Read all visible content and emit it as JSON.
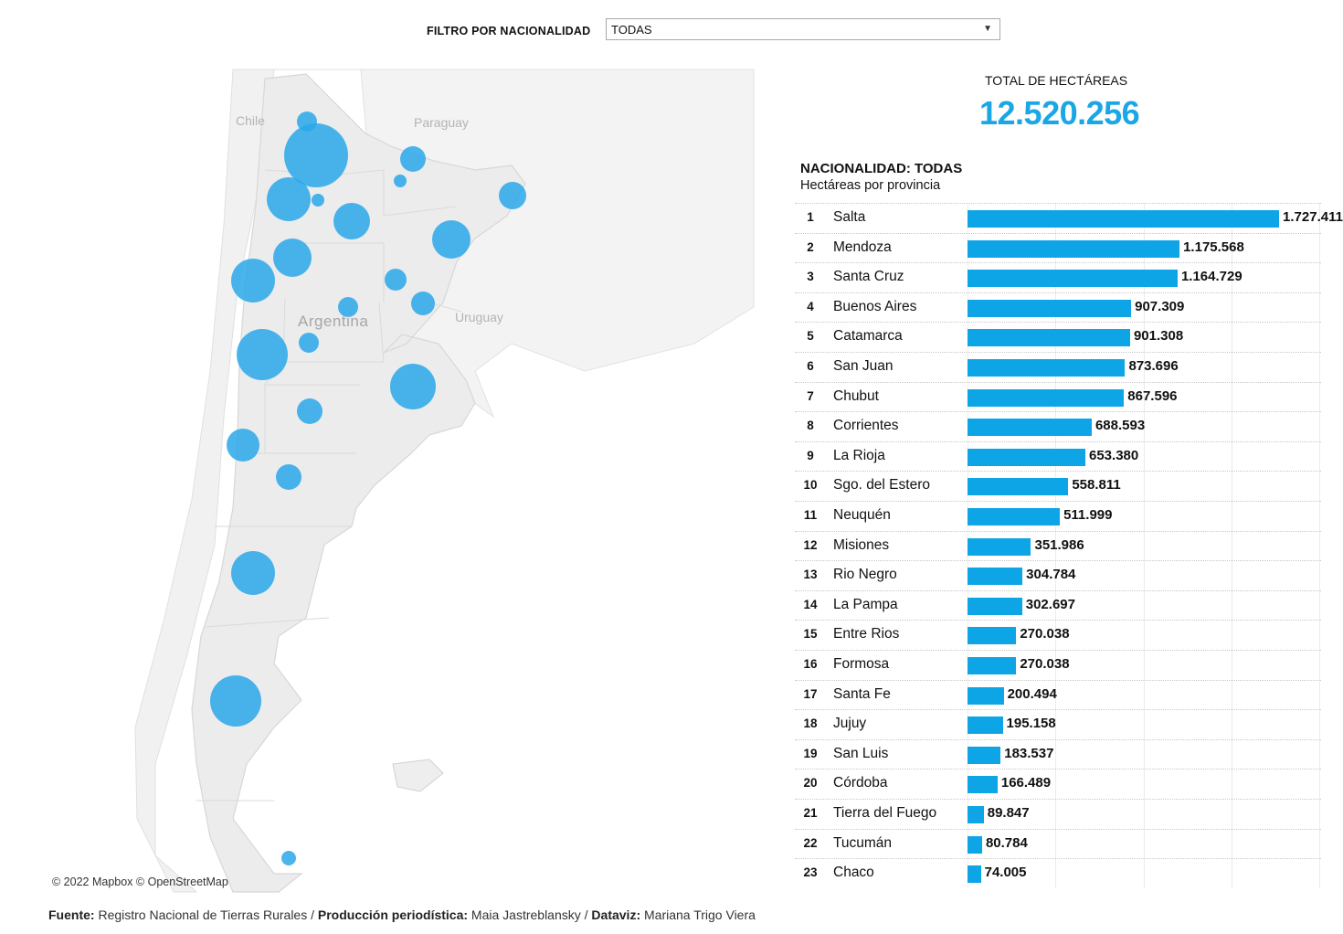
{
  "filter": {
    "label": "FILTRO POR NACIONALIDAD",
    "value": "TODAS"
  },
  "map": {
    "labels": {
      "chile": "Chile",
      "paraguay": "Paraguay",
      "argentina": "Argentina",
      "uruguay": "Uruguay"
    },
    "attribution": "© 2022 Mapbox  © OpenStreetMap",
    "bubble_color": "#2aa8ea"
  },
  "total": {
    "label": "TOTAL DE HECTÁREAS",
    "value": "12.520.256"
  },
  "chart_title": "NACIONALIDAD:  TODAS",
  "chart_subtitle": "Hectáreas por provincia",
  "chart_data": {
    "type": "bar",
    "orientation": "horizontal",
    "xlim": [
      0,
      1950000
    ],
    "rows": [
      {
        "rank": "1",
        "name": "Salta",
        "value": 1727411,
        "label": "1.727.411"
      },
      {
        "rank": "2",
        "name": "Mendoza",
        "value": 1175568,
        "label": "1.175.568"
      },
      {
        "rank": "3",
        "name": "Santa Cruz",
        "value": 1164729,
        "label": "1.164.729"
      },
      {
        "rank": "4",
        "name": "Buenos Aires",
        "value": 907309,
        "label": "907.309"
      },
      {
        "rank": "5",
        "name": "Catamarca",
        "value": 901308,
        "label": "901.308"
      },
      {
        "rank": "6",
        "name": "San Juan",
        "value": 873696,
        "label": "873.696"
      },
      {
        "rank": "7",
        "name": "Chubut",
        "value": 867596,
        "label": "867.596"
      },
      {
        "rank": "8",
        "name": "Corrientes",
        "value": 688593,
        "label": "688.593"
      },
      {
        "rank": "9",
        "name": "La Rioja",
        "value": 653380,
        "label": "653.380"
      },
      {
        "rank": "10",
        "name": "Sgo. del Estero",
        "value": 558811,
        "label": "558.811"
      },
      {
        "rank": "11",
        "name": "Neuquén",
        "value": 511999,
        "label": "511.999"
      },
      {
        "rank": "12",
        "name": "Misiones",
        "value": 351986,
        "label": "351.986"
      },
      {
        "rank": "13",
        "name": "Rio Negro",
        "value": 304784,
        "label": "304.784"
      },
      {
        "rank": "14",
        "name": "La Pampa",
        "value": 302697,
        "label": "302.697"
      },
      {
        "rank": "15",
        "name": "Entre Rios",
        "value": 270038,
        "label": "270.038"
      },
      {
        "rank": "16",
        "name": "Formosa",
        "value": 270038,
        "label": "270.038"
      },
      {
        "rank": "17",
        "name": "Santa Fe",
        "value": 200494,
        "label": "200.494"
      },
      {
        "rank": "18",
        "name": "Jujuy",
        "value": 195158,
        "label": "195.158"
      },
      {
        "rank": "19",
        "name": "San Luis",
        "value": 183537,
        "label": "183.537"
      },
      {
        "rank": "20",
        "name": "Córdoba",
        "value": 166489,
        "label": "166.489"
      },
      {
        "rank": "21",
        "name": "Tierra del Fuego",
        "value": 89847,
        "label": "89.847"
      },
      {
        "rank": "22",
        "name": "Tucumán",
        "value": 80784,
        "label": "80.784"
      },
      {
        "rank": "23",
        "name": "Chaco",
        "value": 74005,
        "label": "74.005"
      }
    ],
    "bar_color": "#0da5e6"
  },
  "footer": {
    "source_label": "Fuente:",
    "source": " Registro Nacional de Tierras Rurales / ",
    "production_label": "Producción periodística:",
    "production": " Maia Jastreblansky / ",
    "dataviz_label": "Dataviz:",
    "dataviz": " Mariana Trigo Viera"
  }
}
